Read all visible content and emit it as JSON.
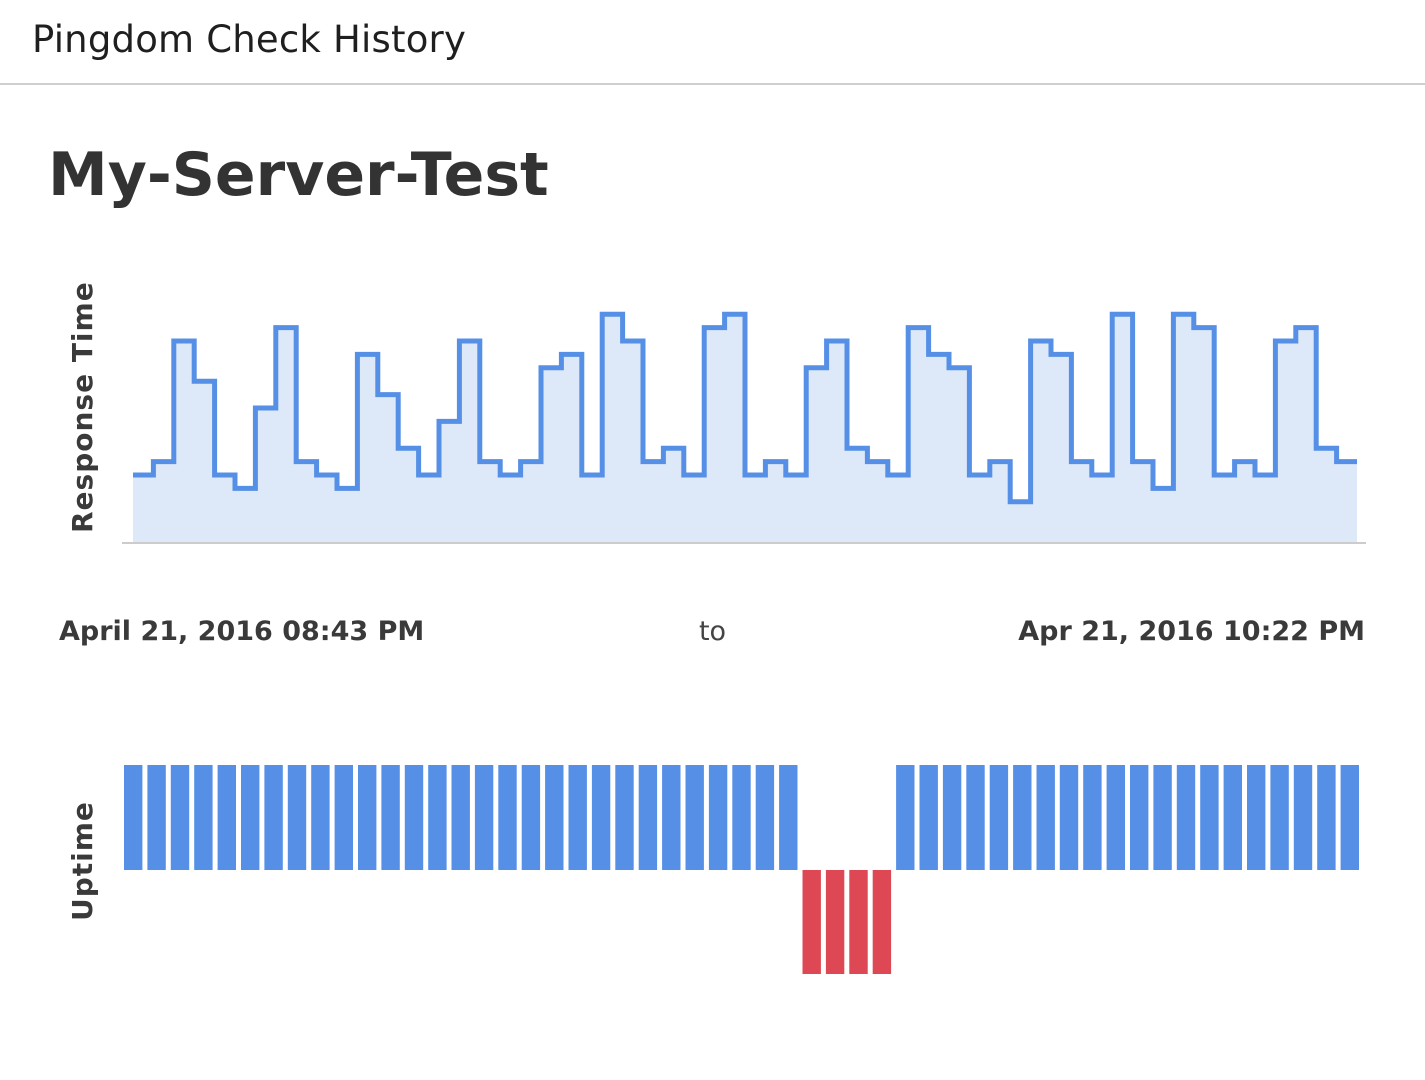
{
  "header": {
    "title": "Pingdom Check History"
  },
  "check": {
    "name": "My-Server-Test"
  },
  "range": {
    "start": "April 21, 2016 08:43 PM",
    "separator": "to",
    "end": "Apr 21, 2016 10:22 PM"
  },
  "colors": {
    "line": "#5590e6",
    "fill": "#dde8f8",
    "up": "#5590e6",
    "down": "#dd4854",
    "baseline": "#cccccc"
  },
  "chart_data": [
    {
      "type": "line",
      "step": true,
      "ylabel": "Response Time",
      "xlabel": "",
      "grid": false,
      "legend": "none",
      "ylim": [
        0,
        20
      ],
      "values": [
        5,
        6,
        15,
        12,
        5,
        4,
        10,
        16,
        6,
        5,
        4,
        14,
        11,
        7,
        5,
        9,
        15,
        6,
        5,
        6,
        13,
        14,
        5,
        17,
        15,
        6,
        7,
        5,
        16,
        17,
        5,
        6,
        5,
        13,
        15,
        7,
        6,
        5,
        16,
        14,
        13,
        5,
        6,
        3,
        15,
        14,
        6,
        5,
        17,
        6,
        4,
        17,
        16,
        5,
        6,
        5,
        15,
        16,
        7,
        6
      ]
    },
    {
      "type": "bar",
      "ylabel": "Uptime",
      "xlabel": "",
      "grid": false,
      "legend": "none",
      "statuses": [
        "up",
        "up",
        "up",
        "up",
        "up",
        "up",
        "up",
        "up",
        "up",
        "up",
        "up",
        "up",
        "up",
        "up",
        "up",
        "up",
        "up",
        "up",
        "up",
        "up",
        "up",
        "up",
        "up",
        "up",
        "up",
        "up",
        "up",
        "up",
        "up",
        "down",
        "down",
        "down",
        "down",
        "up",
        "up",
        "up",
        "up",
        "up",
        "up",
        "up",
        "up",
        "up",
        "up",
        "up",
        "up",
        "up",
        "up",
        "up",
        "up",
        "up",
        "up",
        "up",
        "up"
      ]
    }
  ]
}
